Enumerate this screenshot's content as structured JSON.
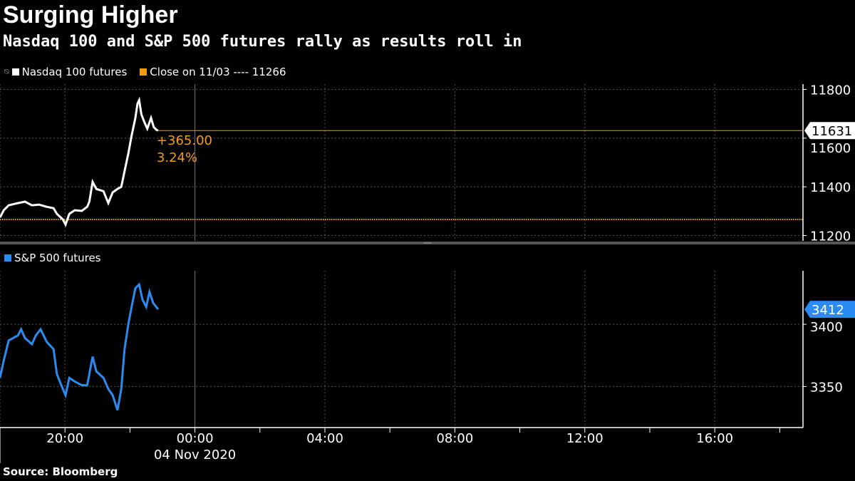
{
  "title": "Surging Higher",
  "subtitle": "Nasdaq 100 and S&P 500 futures rally as results roll in",
  "source": "Source: Bloomberg",
  "colors": {
    "background": "#000000",
    "nasdaq": "#ffffff",
    "sp500": "#2a8cf0",
    "close": "#f39c12",
    "grid": "#666666"
  },
  "chart_data": [
    {
      "type": "line",
      "legend": [
        {
          "label": "Nasdaq 100 futures",
          "color": "#ffffff",
          "icon": "pin-icon"
        },
        {
          "label": "Close on 11/03 ---- 11266",
          "color": "#f39c12"
        }
      ],
      "series": [
        {
          "name": "Nasdaq 100 futures",
          "color": "#ffffff",
          "points": [
            [
              "18:00",
              11274
            ],
            [
              "18:07",
              11304
            ],
            [
              "18:16",
              11324
            ],
            [
              "18:33",
              11333
            ],
            [
              "18:46",
              11339
            ],
            [
              "18:59",
              11324
            ],
            [
              "19:12",
              11327
            ],
            [
              "19:26",
              11318
            ],
            [
              "19:39",
              11312
            ],
            [
              "19:45",
              11289
            ],
            [
              "19:56",
              11266
            ],
            [
              "20:01",
              11245
            ],
            [
              "20:08",
              11289
            ],
            [
              "20:18",
              11304
            ],
            [
              "20:31",
              11301
            ],
            [
              "20:41",
              11318
            ],
            [
              "20:45",
              11339
            ],
            [
              "20:51",
              11420
            ],
            [
              "20:58",
              11391
            ],
            [
              "21:11",
              11382
            ],
            [
              "21:20",
              11333
            ],
            [
              "21:28",
              11377
            ],
            [
              "21:37",
              11391
            ],
            [
              "21:44",
              11400
            ],
            [
              "21:50",
              11464
            ],
            [
              "21:57",
              11537
            ],
            [
              "22:03",
              11610
            ],
            [
              "22:10",
              11683
            ],
            [
              "22:14",
              11742
            ],
            [
              "22:17",
              11756
            ],
            [
              "22:21",
              11698
            ],
            [
              "22:26",
              11669
            ],
            [
              "22:32",
              11639
            ],
            [
              "22:39",
              11683
            ],
            [
              "22:44",
              11645
            ],
            [
              "22:49",
              11634
            ],
            [
              "22:52",
              11631
            ]
          ]
        }
      ],
      "reference_line": {
        "label": "Close on 11/03",
        "value": 11266,
        "color": "#f39c12"
      },
      "annotation": {
        "change": "+365.00",
        "percent": "3.24%",
        "color": "#f39c12"
      },
      "last_value_tag": "11631",
      "y_ticks": [
        "11200",
        "11400",
        "11600",
        "11800"
      ],
      "ylim": [
        11178,
        11822
      ],
      "grid": true
    },
    {
      "type": "line",
      "legend": [
        {
          "label": "S&P 500 futures",
          "color": "#2a8cf0"
        }
      ],
      "series": [
        {
          "name": "S&P 500 futures",
          "color": "#2a8cf0",
          "points": [
            [
              "18:00",
              3357
            ],
            [
              "18:07",
              3371
            ],
            [
              "18:16",
              3387
            ],
            [
              "18:33",
              3391
            ],
            [
              "18:39",
              3396
            ],
            [
              "18:46",
              3389
            ],
            [
              "18:59",
              3384
            ],
            [
              "19:06",
              3391
            ],
            [
              "19:15",
              3396
            ],
            [
              "19:26",
              3386
            ],
            [
              "19:39",
              3380
            ],
            [
              "19:45",
              3360
            ],
            [
              "19:56",
              3348
            ],
            [
              "20:01",
              3343
            ],
            [
              "20:08",
              3357
            ],
            [
              "20:18",
              3354
            ],
            [
              "20:31",
              3351
            ],
            [
              "20:41",
              3351
            ],
            [
              "20:51",
              3374
            ],
            [
              "20:58",
              3362
            ],
            [
              "21:11",
              3357
            ],
            [
              "21:20",
              3348
            ],
            [
              "21:28",
              3343
            ],
            [
              "21:37",
              3331
            ],
            [
              "21:44",
              3348
            ],
            [
              "21:50",
              3380
            ],
            [
              "21:57",
              3400
            ],
            [
              "22:03",
              3414
            ],
            [
              "22:10",
              3429
            ],
            [
              "22:17",
              3432
            ],
            [
              "22:23",
              3420
            ],
            [
              "22:30",
              3414
            ],
            [
              "22:36",
              3426
            ],
            [
              "22:43",
              3417
            ],
            [
              "22:52",
              3412
            ]
          ]
        }
      ],
      "last_value_tag": "3412",
      "y_ticks": [
        "3350",
        "3400"
      ],
      "ylim": [
        3317,
        3443
      ],
      "grid": true
    }
  ],
  "x_axis": {
    "start": "18:00",
    "tick_labels": [
      "20:00",
      "00:00",
      "04:00",
      "08:00",
      "12:00",
      "16:00"
    ],
    "date_label": "04 Nov 2020"
  }
}
